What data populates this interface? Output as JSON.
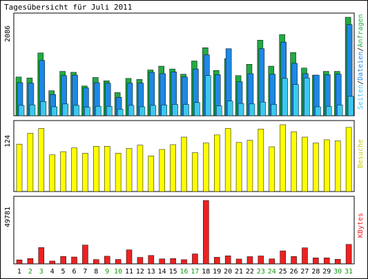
{
  "title": "Tagesübersicht für Juli 2011",
  "colors": {
    "hits": "#22aa44",
    "files": "#1e88e5",
    "pages": "#3cc8ef",
    "visits": "#ffff00",
    "kbytes": "#ee2222",
    "weekend_label": "#119911"
  },
  "chart_data": [
    {
      "type": "bar",
      "panel": "hits-files-pages",
      "ymax_label": "2086",
      "legend": [
        "Seiten",
        "/",
        "Dateien",
        "/",
        "Anfragen"
      ],
      "legend_placement": "right-vertical",
      "categories": [
        "1",
        "2",
        "3",
        "4",
        "5",
        "6",
        "7",
        "8",
        "9",
        "10",
        "11",
        "12",
        "13",
        "14",
        "15",
        "16",
        "17",
        "18",
        "19",
        "20",
        "21",
        "22",
        "23",
        "24",
        "25",
        "26",
        "27",
        "28",
        "29",
        "30",
        "31"
      ],
      "series": [
        {
          "name": "Anfragen",
          "values": [
            820,
            800,
            1330,
            530,
            940,
            920,
            630,
            810,
            740,
            490,
            790,
            770,
            970,
            1050,
            990,
            880,
            1160,
            1440,
            960,
            1210,
            850,
            1090,
            1600,
            1050,
            1720,
            1340,
            1010,
            860,
            940,
            940,
            2086
          ]
        },
        {
          "name": "Dateien",
          "values": [
            700,
            690,
            1170,
            450,
            850,
            860,
            590,
            700,
            690,
            390,
            690,
            690,
            920,
            890,
            930,
            820,
            990,
            1290,
            870,
            1420,
            720,
            890,
            1420,
            880,
            1560,
            1110,
            890,
            860,
            870,
            880,
            1930
          ]
        },
        {
          "name": "Seiten",
          "values": [
            220,
            230,
            300,
            190,
            250,
            220,
            180,
            200,
            200,
            140,
            220,
            190,
            220,
            230,
            240,
            240,
            280,
            850,
            210,
            310,
            260,
            250,
            290,
            240,
            790,
            660,
            800,
            190,
            200,
            230,
            410
          ]
        }
      ],
      "ylim": [
        0,
        2086
      ]
    },
    {
      "type": "bar",
      "panel": "visits",
      "ymax_label": "124",
      "legend": [
        "Besuche"
      ],
      "legend_placement": "right-vertical",
      "categories": [
        "1",
        "2",
        "3",
        "4",
        "5",
        "6",
        "7",
        "8",
        "9",
        "10",
        "11",
        "12",
        "13",
        "14",
        "15",
        "16",
        "17",
        "18",
        "19",
        "20",
        "21",
        "22",
        "23",
        "24",
        "25",
        "26",
        "27",
        "28",
        "29",
        "30",
        "31"
      ],
      "series": [
        {
          "name": "Besuche",
          "values": [
            88,
            108,
            117,
            68,
            74,
            81,
            71,
            84,
            84,
            71,
            80,
            86,
            66,
            78,
            87,
            101,
            72,
            90,
            105,
            117,
            91,
            95,
            116,
            83,
            124,
            111,
            101,
            90,
            96,
            94,
            119
          ]
        }
      ],
      "ylim": [
        0,
        124
      ]
    },
    {
      "type": "bar",
      "panel": "kbytes",
      "ymax_label": "49781",
      "legend": [
        "KBytes"
      ],
      "legend_placement": "right-vertical",
      "categories": [
        "1",
        "2",
        "3",
        "4",
        "5",
        "6",
        "7",
        "8",
        "9",
        "10",
        "11",
        "12",
        "13",
        "14",
        "15",
        "16",
        "17",
        "18",
        "19",
        "20",
        "21",
        "22",
        "23",
        "24",
        "25",
        "26",
        "27",
        "28",
        "29",
        "30",
        "31"
      ],
      "series": [
        {
          "name": "KBytes",
          "values": [
            3100,
            4200,
            12800,
            2200,
            5900,
            5400,
            14800,
            3400,
            6000,
            3500,
            11000,
            5100,
            6600,
            3900,
            4200,
            3300,
            7800,
            49781,
            5200,
            6300,
            3800,
            5700,
            6200,
            3900,
            10200,
            5800,
            12600,
            4700,
            4700,
            3600,
            15300
          ]
        }
      ],
      "ylim": [
        0,
        49781
      ]
    }
  ],
  "weekend_days": [
    "2",
    "3",
    "9",
    "10",
    "16",
    "17",
    "23",
    "24",
    "30",
    "31"
  ]
}
